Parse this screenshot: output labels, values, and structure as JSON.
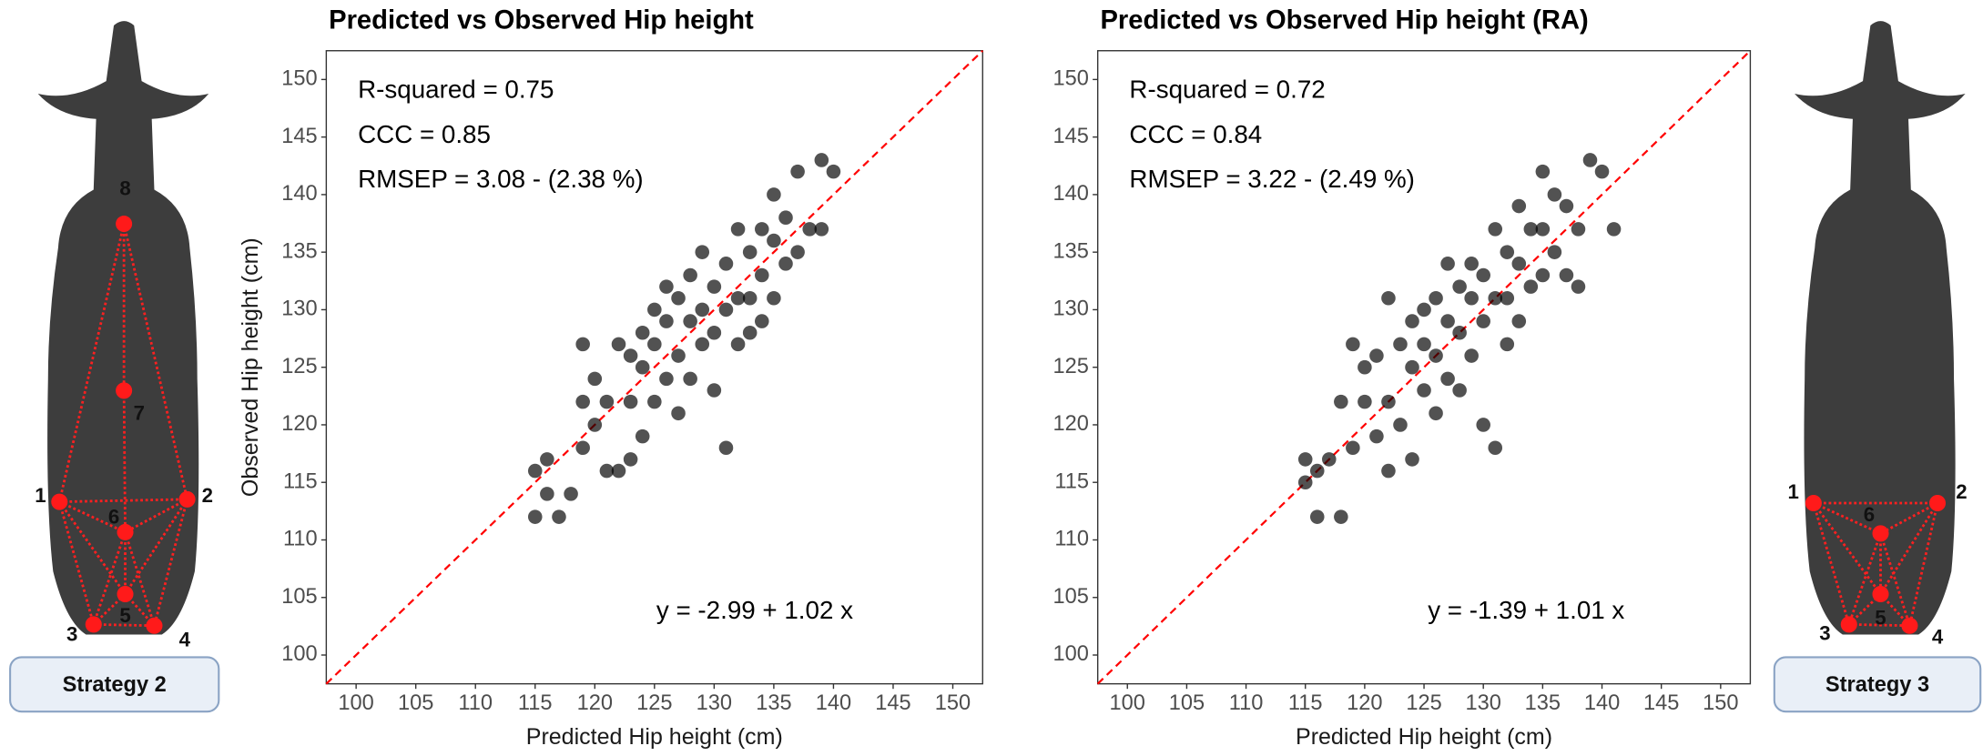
{
  "chart_data": [
    {
      "type": "scatter",
      "title": "Predicted vs Observed Hip height",
      "x_label": "Predicted Hip height (cm)",
      "y_label": "Observed Hip height (cm)",
      "annotations": [
        "R-squared = 0.75",
        "CCC = 0.85",
        "RMSEP = 3.08 - (2.38 %)"
      ],
      "equation": "y = -2.99 + 1.02 x",
      "color": "#000000",
      "opacity": 0.68,
      "identity_line_color": "#ff0000",
      "xlim": [
        97.5,
        152.5
      ],
      "ylim": [
        97.5,
        152.5
      ],
      "xticks": [
        100,
        105,
        110,
        115,
        120,
        125,
        130,
        135,
        140,
        145,
        150
      ],
      "yticks": [
        100,
        105,
        110,
        115,
        120,
        125,
        130,
        135,
        140,
        145,
        150
      ],
      "x": [
        115,
        115,
        116,
        116,
        117,
        118,
        119,
        119,
        119,
        120,
        120,
        121,
        121,
        122,
        122,
        123,
        123,
        123,
        124,
        124,
        124,
        125,
        125,
        125,
        126,
        126,
        126,
        127,
        127,
        127,
        128,
        128,
        128,
        129,
        129,
        129,
        130,
        130,
        130,
        131,
        131,
        131,
        132,
        132,
        132,
        133,
        133,
        133,
        134,
        134,
        134,
        135,
        135,
        135,
        136,
        136,
        137,
        137,
        138,
        139,
        140,
        139
      ],
      "values": [
        116,
        112,
        117,
        114,
        112,
        114,
        127,
        122,
        118,
        120,
        124,
        116,
        122,
        127,
        116,
        122,
        126,
        117,
        125,
        119,
        128,
        130,
        122,
        127,
        129,
        124,
        132,
        131,
        126,
        121,
        133,
        129,
        124,
        130,
        127,
        135,
        132,
        128,
        123,
        134,
        130,
        118,
        137,
        131,
        127,
        135,
        131,
        128,
        137,
        133,
        129,
        140,
        136,
        131,
        138,
        134,
        142,
        135,
        137,
        143,
        142,
        137
      ]
    },
    {
      "type": "scatter",
      "title": "Predicted vs Observed Hip height (RA)",
      "x_label": "Predicted Hip height (cm)",
      "annotations": [
        "R-squared = 0.72",
        "CCC = 0.84",
        "RMSEP = 3.22 - (2.49 %)"
      ],
      "equation": "y = -1.39 + 1.01 x",
      "color": "#000000",
      "opacity": 0.68,
      "identity_line_color": "#ff0000",
      "xlim": [
        97.5,
        152.5
      ],
      "ylim": [
        97.5,
        152.5
      ],
      "xticks": [
        100,
        105,
        110,
        115,
        120,
        125,
        130,
        135,
        140,
        145,
        150
      ],
      "yticks": [
        100,
        105,
        110,
        115,
        120,
        125,
        130,
        135,
        140,
        145,
        150
      ],
      "x": [
        115,
        115,
        116,
        116,
        117,
        118,
        118,
        119,
        119,
        120,
        120,
        121,
        121,
        122,
        122,
        122,
        123,
        123,
        124,
        124,
        124,
        125,
        125,
        125,
        126,
        126,
        126,
        127,
        127,
        127,
        128,
        128,
        128,
        129,
        129,
        129,
        130,
        130,
        130,
        131,
        131,
        131,
        132,
        132,
        132,
        133,
        133,
        133,
        134,
        134,
        135,
        135,
        135,
        136,
        136,
        137,
        137,
        138,
        139,
        140,
        141,
        138
      ],
      "values": [
        117,
        115,
        112,
        116,
        117,
        112,
        122,
        127,
        118,
        122,
        125,
        119,
        126,
        131,
        122,
        116,
        127,
        120,
        125,
        129,
        117,
        127,
        123,
        130,
        131,
        126,
        121,
        134,
        129,
        124,
        132,
        128,
        123,
        134,
        131,
        126,
        133,
        129,
        120,
        137,
        131,
        118,
        135,
        131,
        127,
        139,
        134,
        129,
        137,
        132,
        142,
        137,
        133,
        140,
        135,
        139,
        133,
        137,
        143,
        142,
        137,
        132
      ]
    }
  ],
  "diagrams": [
    {
      "keypoints": [
        "8",
        "7",
        "1",
        "2",
        "6",
        "5",
        "3",
        "4"
      ],
      "label": "Strategy 2"
    },
    {
      "keypoints": [
        "1",
        "2",
        "6",
        "5",
        "3",
        "4"
      ],
      "label": "Strategy 3"
    }
  ]
}
